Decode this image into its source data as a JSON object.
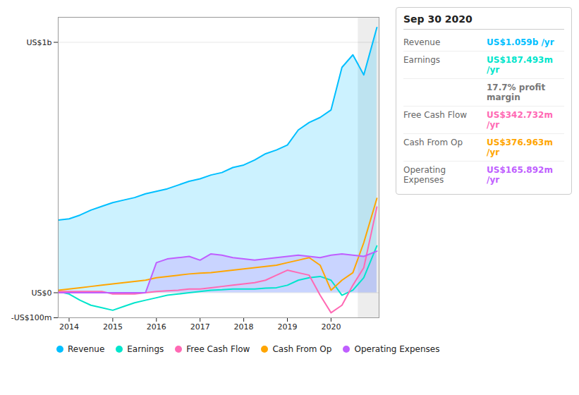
{
  "chart_data": {
    "type": "line",
    "title": "Sep 30 2020",
    "x": [
      2013.75,
      2014.0,
      2014.25,
      2014.5,
      2014.75,
      2015.0,
      2015.25,
      2015.5,
      2015.75,
      2016.0,
      2016.25,
      2016.5,
      2016.75,
      2017.0,
      2017.25,
      2017.5,
      2017.75,
      2018.0,
      2018.25,
      2018.5,
      2018.75,
      2019.0,
      2019.25,
      2019.5,
      2019.75,
      2020.0,
      2020.25,
      2020.5,
      2020.75,
      2021.05
    ],
    "series": [
      {
        "name": "Revenue",
        "color": "#00bfff",
        "type": "area",
        "values": [
          290,
          295,
          310,
          330,
          345,
          360,
          370,
          380,
          395,
          405,
          415,
          430,
          445,
          455,
          470,
          480,
          500,
          510,
          530,
          555,
          570,
          590,
          650,
          680,
          700,
          730,
          900,
          950,
          870,
          1059
        ]
      },
      {
        "name": "Earnings",
        "color": "#00e5cc",
        "type": "line",
        "values": [
          5,
          -5,
          -30,
          -50,
          -60,
          -70,
          -55,
          -40,
          -30,
          -20,
          -10,
          -5,
          0,
          5,
          10,
          12,
          15,
          15,
          15,
          18,
          20,
          30,
          50,
          60,
          65,
          50,
          -10,
          10,
          60,
          187
        ]
      },
      {
        "name": "Free Cash Flow",
        "color": "#ff69b4",
        "type": "line",
        "values": [
          5,
          5,
          5,
          5,
          5,
          -5,
          -5,
          -5,
          0,
          5,
          8,
          10,
          15,
          15,
          20,
          25,
          30,
          35,
          40,
          50,
          70,
          90,
          80,
          70,
          -10,
          -80,
          -50,
          30,
          100,
          342
        ]
      },
      {
        "name": "Cash From Op",
        "color": "#ffa500",
        "type": "line",
        "values": [
          10,
          15,
          20,
          25,
          30,
          35,
          40,
          45,
          50,
          60,
          65,
          70,
          75,
          78,
          80,
          85,
          90,
          95,
          100,
          105,
          110,
          120,
          130,
          140,
          110,
          10,
          50,
          80,
          200,
          377
        ]
      },
      {
        "name": "Operating Expenses",
        "color": "#bf5fff",
        "type": "area",
        "values": [
          0,
          0,
          0,
          0,
          0,
          0,
          0,
          0,
          0,
          120,
          135,
          140,
          145,
          130,
          155,
          150,
          140,
          135,
          130,
          135,
          140,
          145,
          150,
          145,
          140,
          150,
          155,
          150,
          145,
          166
        ]
      }
    ],
    "xlim": [
      2013.75,
      2021.1
    ],
    "xticks": [
      2014,
      2015,
      2016,
      2017,
      2018,
      2019,
      2020
    ],
    "ylim": [
      -100,
      1100
    ],
    "yticks": [
      {
        "value": -100,
        "label": "-US$100m"
      },
      {
        "value": 0,
        "label": "US$0"
      },
      {
        "value": 1000,
        "label": "US$1b"
      }
    ],
    "grid": true,
    "legend": "bottom",
    "highlight_start": 2020.62,
    "annotations": [
      {
        "label": "Revenue",
        "text": "US$1.059b /yr",
        "color": "#00bfff"
      },
      {
        "label": "Earnings",
        "text": "US$187.493m /yr",
        "color": "#00e5cc"
      },
      {
        "text": "17.7% profit margin",
        "color": "#dddddd"
      },
      {
        "label": "Free Cash Flow",
        "text": "US$342.732m /yr",
        "color": "#ff69b4"
      },
      {
        "label": "Cash From Op",
        "text": "US$376.963m /yr",
        "color": "#ffa500"
      },
      {
        "label": "Operating Expenses",
        "text": "US$165.892m /yr",
        "color": "#bf5fff"
      }
    ]
  }
}
